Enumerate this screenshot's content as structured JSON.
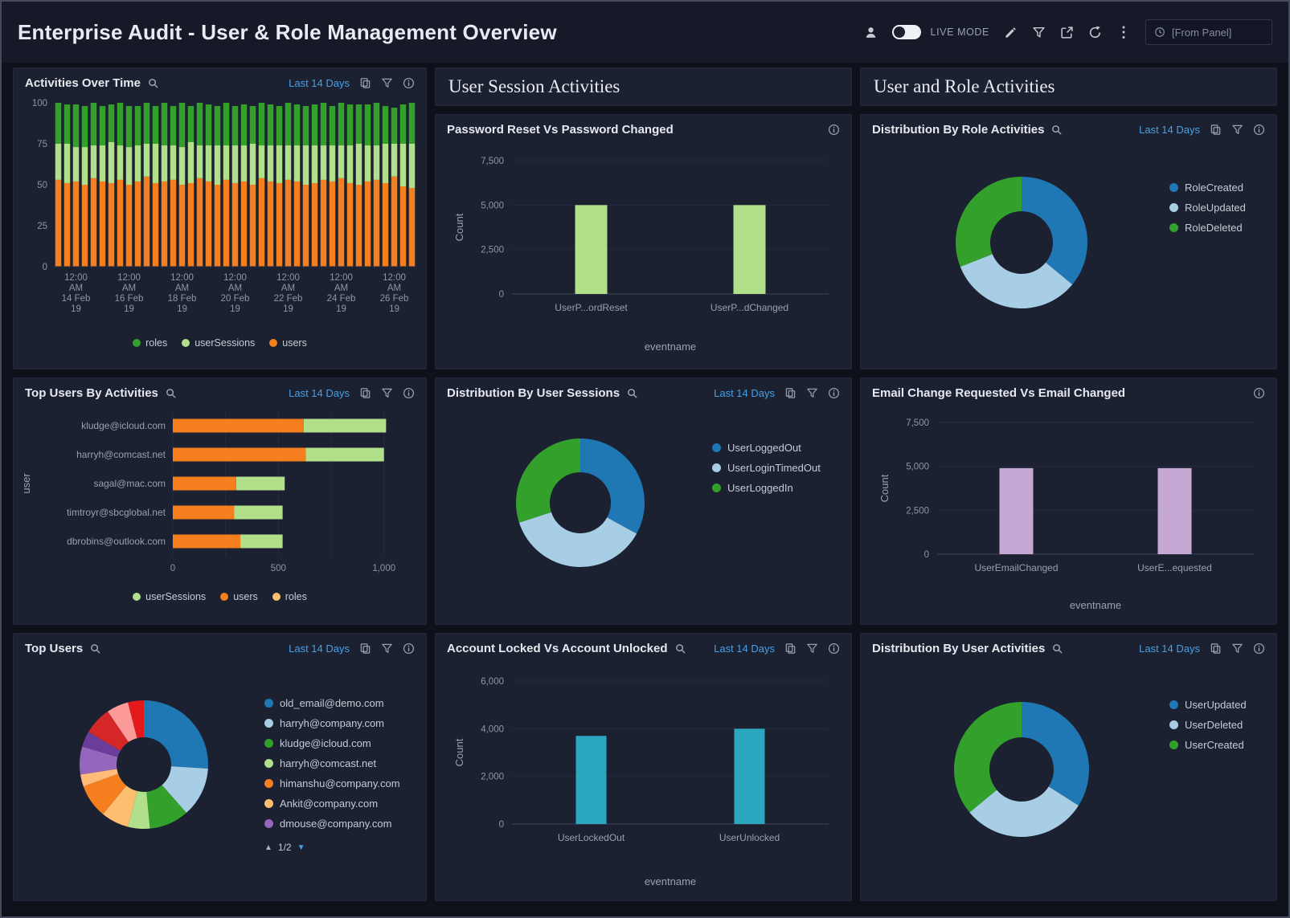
{
  "header": {
    "title": "Enterprise Audit - User & Role Management Overview",
    "live_mode": "LIVE MODE",
    "from_panel": "[From Panel]"
  },
  "sections": {
    "user_session_activities": "User Session Activities",
    "user_and_role_activities": "User and Role Activities"
  },
  "panels": {
    "activities_over_time": {
      "title": "Activities Over Time",
      "time_range": "Last 14 Days",
      "chart_data": {
        "type": "stacked-bar",
        "title": "Activities Over Time",
        "ylim": [
          0,
          100
        ],
        "yticks": [
          [
            0,
            "0"
          ],
          [
            25,
            "25"
          ],
          [
            50,
            "50"
          ],
          [
            75,
            "75"
          ],
          [
            100,
            "100"
          ]
        ],
        "series": [
          {
            "name": "users",
            "color": "#f57e1e",
            "values": [
              53,
              51,
              52,
              50,
              54,
              52,
              51,
              53,
              50,
              52,
              55,
              51,
              52,
              53,
              50,
              51,
              54,
              52,
              50,
              53,
              51,
              52,
              50,
              54,
              52,
              51,
              53,
              52,
              50,
              51,
              53,
              52,
              54,
              51,
              50,
              52,
              53,
              51,
              55,
              49,
              48
            ]
          },
          {
            "name": "userSessions",
            "color": "#b2df8a",
            "values": [
              22,
              24,
              21,
              23,
              20,
              22,
              25,
              21,
              23,
              22,
              20,
              24,
              22,
              21,
              23,
              25,
              20,
              22,
              24,
              21,
              23,
              22,
              25,
              20,
              22,
              23,
              21,
              22,
              24,
              23,
              21,
              22,
              20,
              23,
              25,
              22,
              21,
              24,
              20,
              26,
              27
            ]
          },
          {
            "name": "roles",
            "color": "#33a02c",
            "values": [
              25,
              24,
              26,
              25,
              26,
              24,
              23,
              26,
              25,
              24,
              25,
              23,
              26,
              24,
              27,
              22,
              26,
              25,
              24,
              26,
              24,
              25,
              23,
              26,
              25,
              24,
              26,
              25,
              24,
              25,
              26,
              24,
              26,
              25,
              24,
              25,
              26,
              23,
              22,
              24,
              25
            ]
          }
        ],
        "xticks": [
          {
            "i": 2,
            "lines": [
              "12:00",
              "AM",
              "14 Feb",
              "19"
            ]
          },
          {
            "i": 8,
            "lines": [
              "12:00",
              "AM",
              "16 Feb",
              "19"
            ]
          },
          {
            "i": 14,
            "lines": [
              "12:00",
              "AM",
              "18 Feb",
              "19"
            ]
          },
          {
            "i": 20,
            "lines": [
              "12:00",
              "AM",
              "20 Feb",
              "19"
            ]
          },
          {
            "i": 26,
            "lines": [
              "12:00",
              "AM",
              "22 Feb",
              "19"
            ]
          },
          {
            "i": 32,
            "lines": [
              "12:00",
              "AM",
              "24 Feb",
              "19"
            ]
          },
          {
            "i": 38,
            "lines": [
              "12:00",
              "AM",
              "26 Feb",
              "19"
            ]
          }
        ],
        "legend": [
          {
            "label": "roles",
            "color": "#33a02c"
          },
          {
            "label": "userSessions",
            "color": "#b2df8a"
          },
          {
            "label": "users",
            "color": "#f57e1e"
          }
        ]
      }
    },
    "password_reset_vs_password_changed": {
      "title": "Password Reset Vs Password Changed",
      "chart_data": {
        "type": "bar",
        "title": "Password Reset Vs Password Changed",
        "categories": [
          "UserP...ordReset",
          "UserP...dChanged"
        ],
        "values": [
          5000,
          5000
        ],
        "bar_color": "#b2df8a",
        "ylabel": "Count",
        "xlabel": "eventname",
        "ylim": [
          0,
          7500
        ],
        "yticks": [
          [
            0,
            "0"
          ],
          [
            2500,
            "2,500"
          ],
          [
            5000,
            "5,000"
          ],
          [
            7500,
            "7,500"
          ]
        ]
      }
    },
    "distribution_by_role_activities": {
      "title": "Distribution By Role Activities",
      "time_range": "Last 14 Days",
      "chart_data": {
        "type": "donut",
        "title": "Distribution By Role Activities",
        "slices": [
          {
            "label": "RoleCreated",
            "value": 36,
            "color": "#1f77b4"
          },
          {
            "label": "RoleUpdated",
            "value": 33,
            "color": "#a8cee5"
          },
          {
            "label": "RoleDeleted",
            "value": 31,
            "color": "#33a02c"
          }
        ],
        "legend_position": "right"
      }
    },
    "top_users_by_activities": {
      "title": "Top Users By Activities",
      "time_range": "Last 14 Days",
      "chart_data": {
        "type": "hbar-stacked",
        "title": "Top Users By Activities",
        "categories": [
          "kludge@icloud.com",
          "harryh@comcast.net",
          "sagal@mac.com",
          "timtroyr@sbcglobal.net",
          "dbrobins@outlook.com"
        ],
        "series": [
          {
            "name": "users",
            "color": "#f57e1e",
            "values": [
              620,
              630,
              300,
              290,
              320
            ]
          },
          {
            "name": "userSessions",
            "color": "#b2df8a",
            "values": [
              390,
              370,
              230,
              230,
              200
            ]
          },
          {
            "name": "roles",
            "color": "#fdbf6f",
            "values": [
              0,
              0,
              0,
              0,
              0
            ]
          }
        ],
        "xlim": [
          0,
          1100
        ],
        "xticks": [
          [
            0,
            "0"
          ],
          [
            250,
            ""
          ],
          [
            500,
            "500"
          ],
          [
            750,
            ""
          ],
          [
            1000,
            "1,000"
          ]
        ],
        "ylabel": "user",
        "legend": [
          {
            "label": "userSessions",
            "color": "#b2df8a"
          },
          {
            "label": "users",
            "color": "#f57e1e"
          },
          {
            "label": "roles",
            "color": "#fdbf6f"
          }
        ]
      }
    },
    "distribution_by_user_sessions": {
      "title": "Distribution By User Sessions",
      "time_range": "Last 14 Days",
      "chart_data": {
        "type": "donut",
        "title": "Distribution By User Sessions",
        "slices": [
          {
            "label": "UserLoggedOut",
            "value": 33,
            "color": "#1f77b4"
          },
          {
            "label": "UserLoginTimedOut",
            "value": 37,
            "color": "#a8cee5"
          },
          {
            "label": "UserLoggedIn",
            "value": 30,
            "color": "#33a02c"
          }
        ],
        "legend_position": "right"
      }
    },
    "email_change_requested_vs_email_changed": {
      "title": "Email Change Requested Vs Email Changed",
      "chart_data": {
        "type": "bar",
        "title": "Email Change Requested Vs Email Changed",
        "categories": [
          "UserEmailChanged",
          "UserE...equested"
        ],
        "values": [
          4900,
          4900
        ],
        "bar_color": "#c5a8d4",
        "ylabel": "Count",
        "xlabel": "eventname",
        "ylim": [
          0,
          7500
        ],
        "yticks": [
          [
            0,
            "0"
          ],
          [
            2500,
            "2,500"
          ],
          [
            5000,
            "5,000"
          ],
          [
            7500,
            "7,500"
          ]
        ]
      }
    },
    "top_users": {
      "title": "Top Users",
      "time_range": "Last 14 Days",
      "chart_data": {
        "type": "donut",
        "title": "Top Users",
        "slices": [
          {
            "value": 26,
            "color": "#1f77b4"
          },
          {
            "value": 12.5,
            "color": "#a8cee5"
          },
          {
            "value": 10,
            "color": "#33a02c"
          },
          {
            "value": 5.5,
            "color": "#b2df8a"
          },
          {
            "value": 7,
            "color": "#fdbf6f"
          },
          {
            "value": 8.5,
            "color": "#f57e1e"
          },
          {
            "value": 3,
            "color": "#ffbb78"
          },
          {
            "value": 7,
            "color": "#9467bd"
          },
          {
            "value": 4,
            "color": "#6a3d9a"
          },
          {
            "value": 7,
            "color": "#d62728"
          },
          {
            "value": 5.5,
            "color": "#fb9a99"
          },
          {
            "value": 4,
            "color": "#e31a1c"
          }
        ],
        "legend": [
          {
            "label": "old_email@demo.com",
            "color": "#1f77b4"
          },
          {
            "label": "harryh@company.com",
            "color": "#a8cee5"
          },
          {
            "label": "kludge@icloud.com",
            "color": "#33a02c"
          },
          {
            "label": "harryh@comcast.net",
            "color": "#b2df8a"
          },
          {
            "label": "himanshu@company.com",
            "color": "#f57e1e"
          },
          {
            "label": "Ankit@company.com",
            "color": "#fdbf6f"
          },
          {
            "label": "dmouse@company.com",
            "color": "#9467bd"
          }
        ],
        "legend_pager": "1/2"
      }
    },
    "account_locked_vs_account_unlocked": {
      "title": "Account Locked Vs Account Unlocked",
      "time_range": "Last 14 Days",
      "chart_data": {
        "type": "bar",
        "title": "Account Locked Vs Account Unlocked",
        "categories": [
          "UserLockedOut",
          "UserUnlocked"
        ],
        "values": [
          3700,
          4000
        ],
        "bar_color": "#2ba7bf",
        "ylabel": "Count",
        "xlabel": "eventname",
        "ylim": [
          0,
          6000
        ],
        "yticks": [
          [
            0,
            "0"
          ],
          [
            2000,
            "2,000"
          ],
          [
            4000,
            "4,000"
          ],
          [
            6000,
            "6,000"
          ]
        ]
      }
    },
    "distribution_by_user_activities": {
      "title": "Distribution By User Activities",
      "time_range": "Last 14 Days",
      "chart_data": {
        "type": "donut",
        "title": "Distribution By User Activities",
        "slices": [
          {
            "label": "UserUpdated",
            "value": 34,
            "color": "#1f77b4"
          },
          {
            "label": "UserDeleted",
            "value": 30,
            "color": "#a8cee5"
          },
          {
            "label": "UserCreated",
            "value": 36,
            "color": "#33a02c"
          }
        ],
        "legend_position": "right"
      }
    }
  }
}
